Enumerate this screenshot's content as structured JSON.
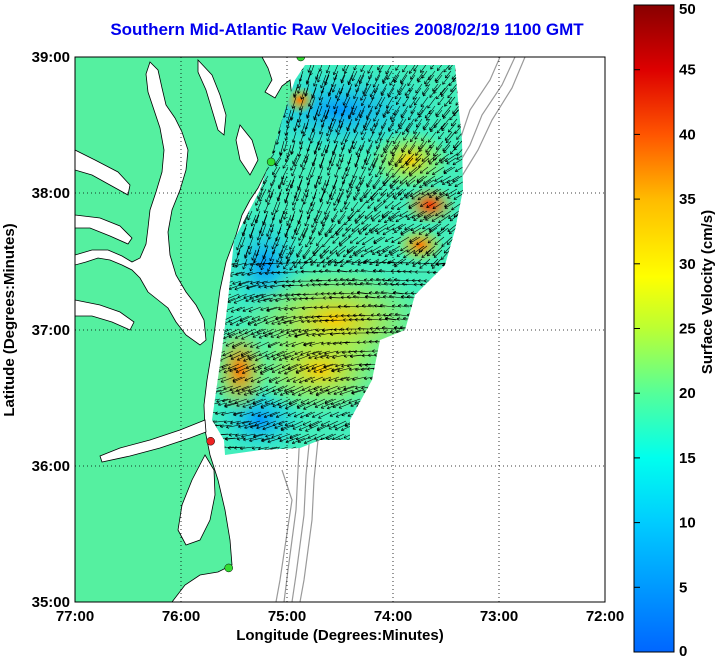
{
  "title": "Southern Mid-Atlantic Raw Velocities 2008/02/19 1100 GMT",
  "x_axis": {
    "label": "Longitude (Degrees:Minutes)",
    "ticks": [
      "77:00",
      "76:00",
      "75:00",
      "74:00",
      "73:00",
      "72:00"
    ]
  },
  "y_axis": {
    "label": "Latitude (Degrees:Minutes)",
    "ticks": [
      "39:00",
      "38:00",
      "37:00",
      "36:00",
      "35:00"
    ]
  },
  "colorbar": {
    "label": "Surface Velocity (cm/s)",
    "ticks": [
      "50",
      "45",
      "40",
      "35",
      "30",
      "25",
      "20",
      "15",
      "10",
      "5",
      "0"
    ],
    "range": [
      0,
      50
    ]
  },
  "colors": {
    "land": "#55f0a0",
    "water": "#ffffff",
    "coast": "#000000",
    "bathymetry": "#9a9a9a",
    "title": "#0000ee"
  },
  "stations": [
    {
      "lon": -74.87,
      "lat": 39.0,
      "color": "#33dd33"
    },
    {
      "lon": -75.15,
      "lat": 38.23,
      "color": "#33dd33"
    },
    {
      "lon": -75.72,
      "lat": 36.18,
      "color": "#ee2222"
    },
    {
      "lon": -75.55,
      "lat": 35.25,
      "color": "#33dd33"
    }
  ]
}
